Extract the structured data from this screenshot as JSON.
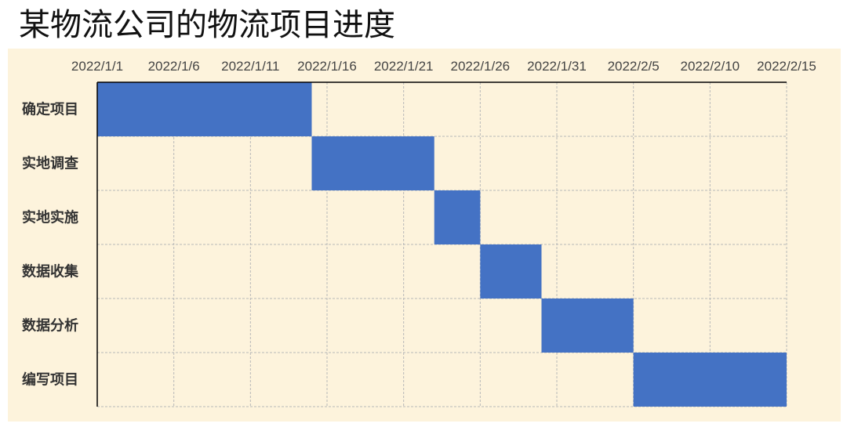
{
  "chart_data": {
    "type": "bar",
    "orientation": "horizontal-gantt",
    "title": "某物流公司的物流项目进度",
    "x_axis_position": "top",
    "x_tick_labels": [
      "2022/1/1",
      "2022/1/6",
      "2022/1/11",
      "2022/1/16",
      "2022/1/21",
      "2022/1/26",
      "2022/1/31",
      "2022/2/5",
      "2022/2/10",
      "2022/2/15"
    ],
    "xlim": [
      "2022/1/1",
      "2022/2/15"
    ],
    "tick_step_days": 5,
    "grid": true,
    "categories": [
      "确定项目",
      "实地调查",
      "实地实施",
      "数据收集",
      "数据分析",
      "编写项目"
    ],
    "series": [
      {
        "color": "#4472c4",
        "start": [
          "2022/1/1",
          "2022/1/15",
          "2022/1/23",
          "2022/1/26",
          "2022/1/30",
          "2022/2/5"
        ],
        "end": [
          "2022/1/15",
          "2022/1/23",
          "2022/1/26",
          "2022/1/30",
          "2022/2/5",
          "2022/2/15"
        ]
      }
    ],
    "colors": {
      "background": "#fdf3dc",
      "grid": "#b8b8b8",
      "axis": "#000000"
    }
  }
}
